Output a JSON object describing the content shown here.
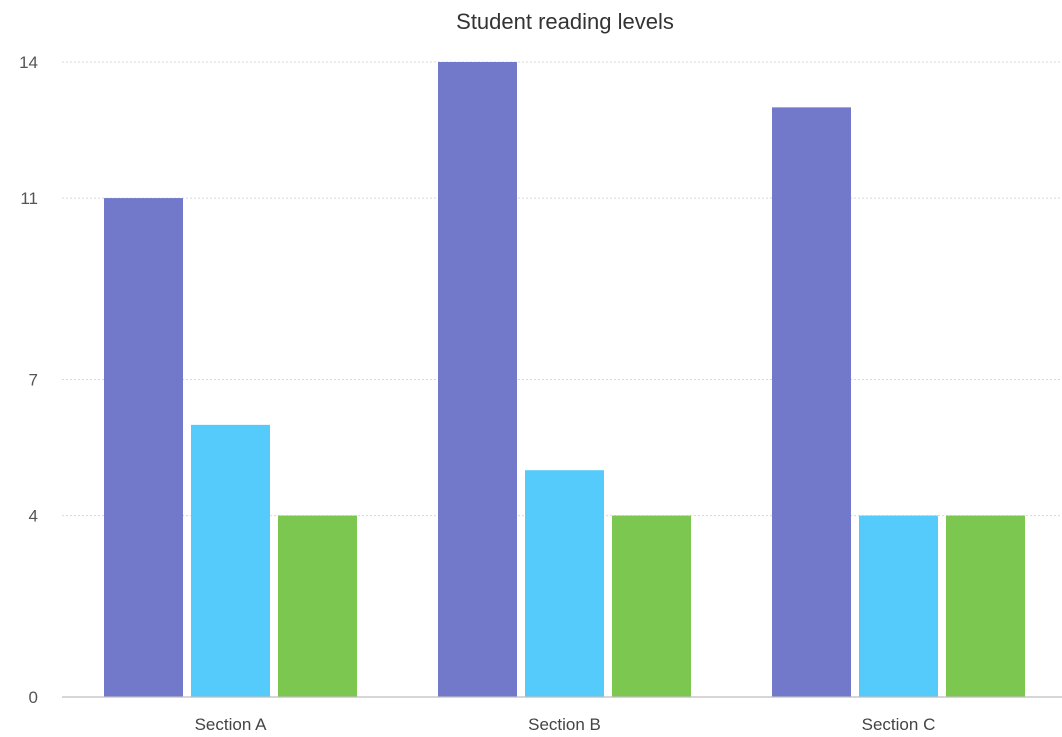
{
  "chart_data": {
    "type": "bar",
    "title": "Student reading levels",
    "xlabel": "",
    "ylabel": "",
    "categories": [
      "Section A",
      "Section B",
      "Section C"
    ],
    "y_ticks": [
      0,
      4,
      7,
      11,
      14
    ],
    "ylim": [
      0,
      14
    ],
    "grid": true,
    "series": [
      {
        "values": [
          11.0,
          14.0,
          13.0
        ],
        "color": "#7279cb"
      },
      {
        "values": [
          6.0,
          5.0,
          4.0
        ],
        "color": "#54cbfa"
      },
      {
        "values": [
          4.0,
          4.0,
          4.0
        ],
        "color": "#7bc74f"
      }
    ]
  }
}
